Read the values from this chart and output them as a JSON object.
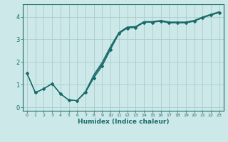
{
  "title": "",
  "xlabel": "Humidex (Indice chaleur)",
  "x_ticks": [
    0,
    1,
    2,
    3,
    4,
    5,
    6,
    7,
    8,
    9,
    10,
    11,
    12,
    13,
    14,
    15,
    16,
    17,
    18,
    19,
    20,
    21,
    22,
    23
  ],
  "xlim": [
    -0.5,
    23.5
  ],
  "ylim": [
    -0.15,
    4.55
  ],
  "y_ticks": [
    0,
    1,
    2,
    3,
    4
  ],
  "background_color": "#cde8e8",
  "grid_color": "#aacccc",
  "line_color": "#1a6b6b",
  "main_x": [
    0,
    1,
    2,
    3,
    4,
    5,
    6,
    7,
    8,
    9,
    10,
    11,
    12,
    13,
    14,
    15,
    16,
    17,
    18,
    19,
    20,
    21,
    22,
    23
  ],
  "main_y": [
    1.5,
    0.65,
    0.82,
    1.05,
    0.6,
    0.32,
    0.3,
    0.65,
    1.3,
    1.82,
    2.55,
    3.25,
    3.5,
    3.52,
    3.75,
    3.75,
    3.8,
    3.72,
    3.73,
    3.72,
    3.8,
    3.95,
    4.07,
    4.18
  ],
  "line2_y": [
    1.5,
    0.65,
    0.82,
    1.05,
    0.6,
    0.32,
    0.3,
    0.67,
    1.35,
    1.88,
    2.6,
    3.27,
    3.51,
    3.53,
    3.76,
    3.76,
    3.81,
    3.73,
    3.74,
    3.73,
    3.81,
    3.96,
    4.08,
    4.19
  ],
  "line3_y": [
    1.5,
    0.65,
    0.82,
    1.05,
    0.6,
    0.32,
    0.3,
    0.69,
    1.4,
    1.94,
    2.65,
    3.29,
    3.53,
    3.55,
    3.77,
    3.77,
    3.82,
    3.75,
    3.75,
    3.75,
    3.82,
    3.97,
    4.1,
    4.21
  ],
  "line4_y": [
    1.5,
    0.65,
    0.82,
    1.05,
    0.6,
    0.32,
    0.3,
    0.71,
    1.45,
    2.0,
    2.7,
    3.31,
    3.55,
    3.57,
    3.79,
    3.79,
    3.84,
    3.77,
    3.77,
    3.77,
    3.84,
    3.99,
    4.11,
    4.22
  ]
}
